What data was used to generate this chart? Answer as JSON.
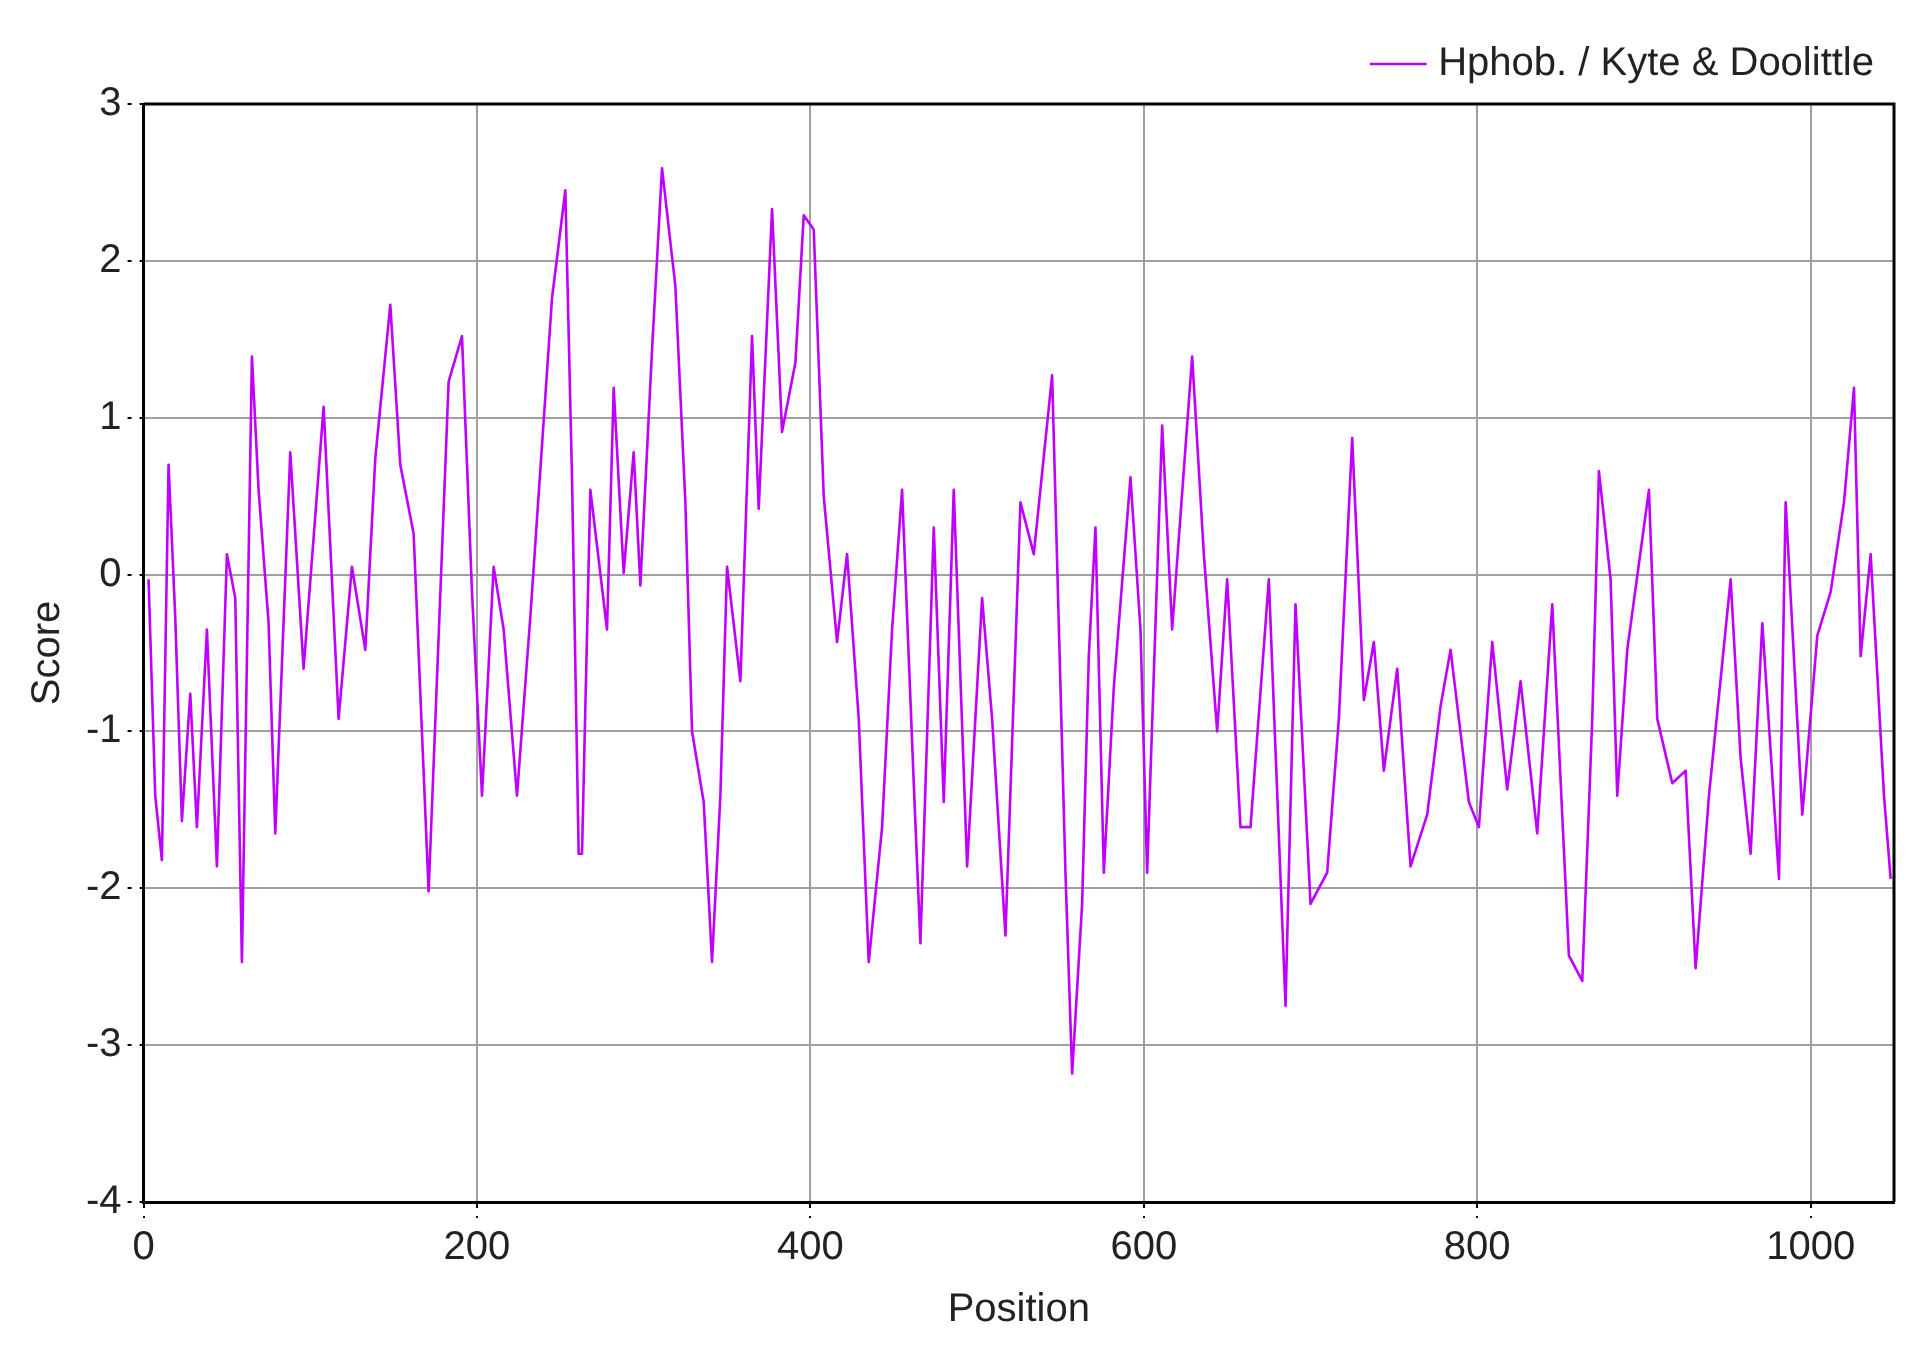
{
  "chart_data": {
    "type": "line",
    "xlabel": "Position",
    "ylabel": "Score",
    "xlim": [
      0,
      1050
    ],
    "xticks": [
      0,
      200,
      400,
      600,
      800,
      1000
    ],
    "ylim": [
      -4,
      3
    ],
    "yticks": [
      -4,
      -3,
      -2,
      -1,
      0,
      1,
      2,
      3
    ],
    "grid": true,
    "legend": "top right",
    "marker": "none",
    "line_style": "solid",
    "series": [
      {
        "name": "Hphob. / Kyte & Doolittle",
        "color": "#bf00ff",
        "x": [
          3,
          7,
          11,
          15,
          19,
          23,
          28,
          32,
          38,
          44,
          50,
          55,
          59,
          65,
          69,
          75,
          79,
          88,
          96,
          108,
          117,
          125,
          133,
          139,
          148,
          154,
          162,
          171,
          183,
          191,
          197,
          203,
          210,
          216,
          224,
          232,
          245,
          253,
          257,
          261,
          263,
          268,
          278,
          282,
          288,
          294,
          298,
          305,
          311,
          319,
          325,
          329,
          336,
          341,
          346,
          350,
          358,
          365,
          369,
          377,
          383,
          391,
          396,
          402,
          408,
          416,
          422,
          429,
          435,
          443,
          449,
          455,
          462,
          466,
          474,
          480,
          486,
          494,
          503,
          509,
          517,
          526,
          534,
          545,
          553,
          557,
          563,
          567,
          571,
          576,
          582,
          592,
          598,
          602,
          611,
          617,
          629,
          636,
          644,
          650,
          658,
          664,
          675,
          685,
          691,
          700,
          710,
          717,
          725,
          732,
          738,
          744,
          752,
          760,
          770,
          778,
          784,
          795,
          801,
          809,
          818,
          826,
          836,
          845,
          855,
          863,
          869,
          873,
          880,
          884,
          890,
          903,
          908,
          917,
          925,
          931,
          939,
          952,
          958,
          964,
          971,
          981,
          985,
          995,
          1004,
          1012,
          1020,
          1026,
          1030,
          1036,
          1044,
          1048
        ],
        "values": [
          -0.03,
          -1.41,
          -1.82,
          0.7,
          -0.27,
          -1.57,
          -0.76,
          -1.61,
          -0.35,
          -1.86,
          0.13,
          -0.15,
          -2.47,
          1.39,
          0.54,
          -0.31,
          -1.65,
          0.78,
          -0.6,
          1.07,
          -0.92,
          0.05,
          -0.48,
          0.74,
          1.72,
          0.7,
          0.26,
          -2.02,
          1.23,
          1.52,
          -0.11,
          -1.41,
          0.05,
          -0.35,
          -1.41,
          -0.27,
          1.76,
          2.45,
          0.62,
          -1.78,
          -1.78,
          0.54,
          -0.35,
          1.19,
          0.01,
          0.78,
          -0.07,
          1.43,
          2.59,
          1.84,
          0.46,
          -1.0,
          -1.45,
          -2.47,
          -1.41,
          0.05,
          -0.68,
          1.52,
          0.42,
          2.33,
          0.91,
          1.35,
          2.29,
          2.2,
          0.5,
          -0.43,
          0.13,
          -0.92,
          -2.47,
          -1.61,
          -0.35,
          0.54,
          -1.33,
          -2.35,
          0.3,
          -1.45,
          0.54,
          -1.86,
          -0.15,
          -0.92,
          -2.3,
          0.46,
          0.13,
          1.27,
          -1.9,
          -3.18,
          -2.1,
          -0.52,
          0.3,
          -1.9,
          -0.72,
          0.62,
          -0.35,
          -1.9,
          0.95,
          -0.35,
          1.39,
          0.13,
          -1.0,
          -0.03,
          -1.61,
          -1.61,
          -0.03,
          -2.75,
          -0.19,
          -2.1,
          -1.9,
          -0.92,
          0.87,
          -0.8,
          -0.43,
          -1.25,
          -0.6,
          -1.86,
          -1.53,
          -0.84,
          -0.48,
          -1.45,
          -1.61,
          -0.43,
          -1.37,
          -0.68,
          -1.65,
          -0.19,
          -2.43,
          -2.59,
          -0.92,
          0.66,
          -0.03,
          -1.41,
          -0.48,
          0.54,
          -0.92,
          -1.33,
          -1.25,
          -2.51,
          -1.41,
          -0.03,
          -1.17,
          -1.78,
          -0.31,
          -1.94,
          0.46,
          -1.53,
          -0.39,
          -0.11,
          0.46,
          1.19,
          -0.52,
          0.13,
          -1.41,
          -1.94
        ]
      }
    ]
  }
}
